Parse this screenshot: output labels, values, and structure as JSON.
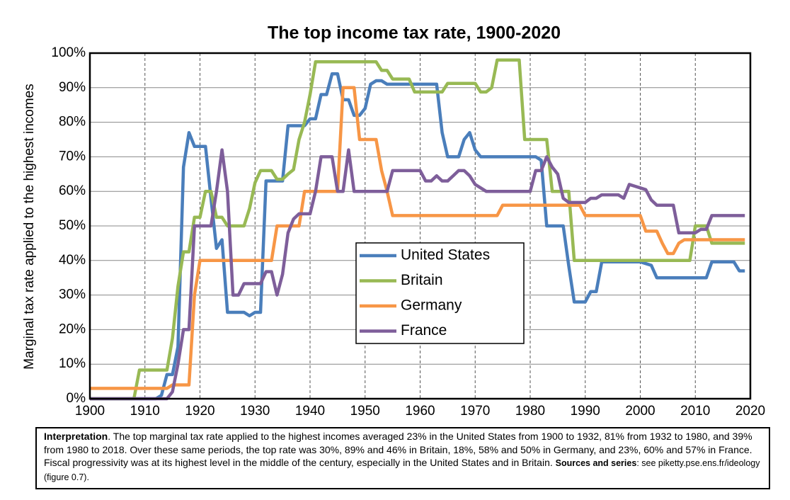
{
  "chart_data": {
    "type": "line",
    "title": "The top income tax rate, 1900-2020",
    "y_label": "Marginal tax rate applied to the highest incomes",
    "x": [
      1900,
      1901,
      1902,
      1903,
      1904,
      1905,
      1906,
      1907,
      1908,
      1909,
      1910,
      1911,
      1912,
      1913,
      1914,
      1915,
      1916,
      1917,
      1918,
      1919,
      1920,
      1921,
      1922,
      1923,
      1924,
      1925,
      1926,
      1927,
      1928,
      1929,
      1930,
      1931,
      1932,
      1933,
      1934,
      1935,
      1936,
      1937,
      1938,
      1939,
      1940,
      1941,
      1942,
      1943,
      1944,
      1945,
      1946,
      1947,
      1948,
      1949,
      1950,
      1951,
      1952,
      1953,
      1954,
      1955,
      1956,
      1957,
      1958,
      1959,
      1960,
      1961,
      1962,
      1963,
      1964,
      1965,
      1966,
      1967,
      1968,
      1969,
      1970,
      1971,
      1972,
      1973,
      1974,
      1975,
      1976,
      1977,
      1978,
      1979,
      1980,
      1981,
      1982,
      1983,
      1984,
      1985,
      1986,
      1987,
      1988,
      1989,
      1990,
      1991,
      1992,
      1993,
      1994,
      1995,
      1996,
      1997,
      1998,
      1999,
      2000,
      2001,
      2002,
      2003,
      2004,
      2005,
      2006,
      2007,
      2008,
      2009,
      2010,
      2011,
      2012,
      2013,
      2014,
      2015,
      2016,
      2017,
      2018,
      2019
    ],
    "series": [
      {
        "name": "United States",
        "color": "#4a7ebb",
        "values": [
          0,
          0,
          0,
          0,
          0,
          0,
          0,
          0,
          0,
          0,
          0,
          0,
          0,
          1,
          7,
          7,
          15,
          67,
          77,
          73,
          73,
          73,
          58,
          43.5,
          46,
          25,
          25,
          25,
          25,
          24,
          25,
          25,
          63,
          63,
          63,
          63,
          79,
          79,
          79,
          79,
          81,
          81,
          88,
          88,
          94,
          94,
          86.5,
          86.5,
          82,
          82,
          84,
          91,
          92,
          92,
          91,
          91,
          91,
          91,
          91,
          91,
          91,
          91,
          91,
          91,
          77,
          70,
          70,
          70,
          75,
          77,
          72,
          70,
          70,
          70,
          70,
          70,
          70,
          70,
          70,
          70,
          70,
          70,
          69,
          50,
          50,
          50,
          50,
          38.5,
          28,
          28,
          28,
          31,
          31,
          39.6,
          39.6,
          39.6,
          39.6,
          39.6,
          39.6,
          39.6,
          39.6,
          39.1,
          38.6,
          35,
          35,
          35,
          35,
          35,
          35,
          35,
          35,
          35,
          35,
          39.6,
          39.6,
          39.6,
          39.6,
          39.6,
          37,
          37
        ]
      },
      {
        "name": "Britain",
        "color": "#98b954",
        "values": [
          0,
          0,
          0,
          0,
          0,
          0,
          0,
          0,
          0,
          8.3,
          8.3,
          8.3,
          8.3,
          8.3,
          8.3,
          17.5,
          32.5,
          42.5,
          42.5,
          52.5,
          52.5,
          60,
          60,
          52.5,
          52.5,
          50,
          50,
          50,
          50,
          55,
          62.5,
          66,
          66,
          66,
          63.5,
          63.5,
          65,
          66.3,
          75,
          80,
          88,
          97.5,
          97.5,
          97.5,
          97.5,
          97.5,
          97.5,
          97.5,
          97.5,
          97.5,
          97.5,
          97.5,
          97.5,
          95,
          95,
          92.5,
          92.5,
          92.5,
          92.5,
          88.75,
          88.75,
          88.75,
          88.75,
          88.75,
          88.75,
          91.25,
          91.25,
          91.25,
          91.25,
          91.25,
          91.25,
          88.75,
          88.75,
          90,
          98,
          98,
          98,
          98,
          98,
          75,
          75,
          75,
          75,
          75,
          60,
          60,
          60,
          60,
          40,
          40,
          40,
          40,
          40,
          40,
          40,
          40,
          40,
          40,
          40,
          40,
          40,
          40,
          40,
          40,
          40,
          40,
          40,
          40,
          40,
          40,
          50,
          50,
          50,
          45,
          45,
          45,
          45,
          45,
          45,
          45
        ]
      },
      {
        "name": "Germany",
        "color": "#f79646",
        "values": [
          3,
          3,
          3,
          3,
          3,
          3,
          3,
          3,
          3,
          3,
          3,
          3,
          3,
          3,
          3,
          4,
          4,
          4,
          4,
          30,
          40,
          40,
          40,
          40,
          40,
          40,
          40,
          40,
          40,
          40,
          40,
          40,
          40,
          40,
          50,
          50,
          50,
          50,
          50,
          60,
          60,
          60,
          60,
          60,
          60,
          60,
          90,
          90,
          90,
          75,
          75,
          75,
          75,
          66,
          60,
          53,
          53,
          53,
          53,
          53,
          53,
          53,
          53,
          53,
          53,
          53,
          53,
          53,
          53,
          53,
          53,
          53,
          53,
          53,
          53,
          56,
          56,
          56,
          56,
          56,
          56,
          56,
          56,
          56,
          56,
          56,
          56,
          56,
          56,
          56,
          53,
          53,
          53,
          53,
          53,
          53,
          53,
          53,
          53,
          53,
          53,
          48.5,
          48.5,
          48.5,
          45,
          42,
          42,
          45,
          46,
          46,
          46,
          46,
          46,
          46,
          46,
          46,
          46,
          46,
          46,
          46
        ]
      },
      {
        "name": "France",
        "color": "#7e5e9a",
        "values": [
          0,
          0,
          0,
          0,
          0,
          0,
          0,
          0,
          0,
          0,
          0,
          0,
          0,
          0,
          0,
          2,
          10,
          20,
          20,
          50,
          50,
          50,
          50,
          60,
          72,
          60,
          30,
          30,
          33.3,
          33.3,
          33.3,
          33.3,
          36.75,
          36.75,
          30,
          36,
          48,
          52,
          53.5,
          53.5,
          53.5,
          60,
          70,
          70,
          70,
          60,
          60,
          72,
          60,
          60,
          60,
          60,
          60,
          60,
          60,
          66,
          66,
          66,
          66,
          66,
          66,
          63,
          63,
          64.5,
          63,
          63,
          64.5,
          66,
          66,
          64.5,
          62,
          61,
          60,
          60,
          60,
          60,
          60,
          60,
          60,
          60,
          60,
          66,
          66,
          70,
          67,
          65,
          58,
          56.8,
          56.8,
          56.8,
          56.8,
          58,
          58,
          59,
          59,
          59,
          59,
          58,
          62,
          61.5,
          61,
          60.5,
          57.5,
          56,
          56,
          56,
          56,
          48,
          48,
          48,
          48,
          49,
          49,
          53,
          53,
          53,
          53,
          53,
          53,
          53
        ]
      }
    ],
    "xlim": [
      1900,
      2020
    ],
    "xticks": [
      1900,
      1910,
      1920,
      1930,
      1940,
      1950,
      1960,
      1970,
      1980,
      1990,
      2000,
      2010,
      2020
    ],
    "ylim": [
      0,
      100
    ],
    "yticks": [
      {
        "value": 0,
        "label": "0%"
      },
      {
        "value": 10,
        "label": "10%"
      },
      {
        "value": 20,
        "label": "20%"
      },
      {
        "value": 30,
        "label": "30%"
      },
      {
        "value": 40,
        "label": "40%"
      },
      {
        "value": 50,
        "label": "50%"
      },
      {
        "value": 60,
        "label": "60%"
      },
      {
        "value": 70,
        "label": "70%"
      },
      {
        "value": 80,
        "label": "80%"
      },
      {
        "value": 90,
        "label": "90%"
      },
      {
        "value": 100,
        "label": "100%"
      }
    ],
    "grid": true,
    "legend": "center"
  },
  "note": {
    "lead": "Interpretation",
    "body": ". The top marginal tax rate applied to the highest incomes averaged 23% in the United States from 1900 to 1932, 81% from 1932 to 1980, and 39% from 1980 to 2018. Over these same periods, the top rate was 30%, 89% and 46% in Britain, 18%, 58% and 50% in Germany, and 23%, 60% and 57% in France. Fiscal progressivity was at its highest level in the middle of the century, especially in the United States and in Britain.",
    "sources_lead": "Sources and series",
    "sources_body": ": see piketty.pse.ens.fr/ideology (figure 0.7)."
  }
}
